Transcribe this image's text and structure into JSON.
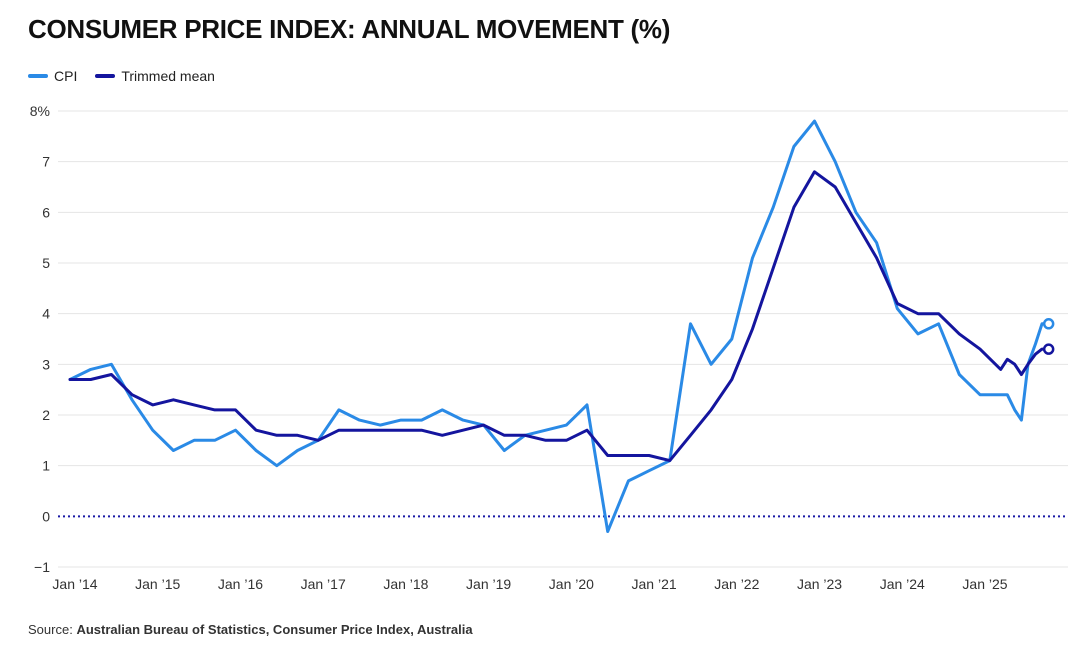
{
  "title": "CONSUMER PRICE INDEX: ANNUAL MOVEMENT (%)",
  "source_label": "Source:",
  "source_text": "Australian Bureau of Statistics, Consumer Price Index, Australia",
  "colors": {
    "cpi": "#2a8ae6",
    "trimmed": "#14159e",
    "zero_line": "#1a1aa6",
    "grid": "#e5e5e5"
  },
  "chart_data": {
    "type": "line",
    "title": "CONSUMER PRICE INDEX: ANNUAL MOVEMENT (%)",
    "xlabel": "",
    "ylabel": "",
    "ylim": [
      -1,
      8
    ],
    "xlim": [
      2014,
      2026
    ],
    "y_ticks": [
      -1,
      0,
      1,
      2,
      3,
      4,
      5,
      6,
      7,
      8
    ],
    "y_tick_labels": [
      "−1",
      "0",
      "1",
      "2",
      "3",
      "4",
      "5",
      "6",
      "7",
      "8%"
    ],
    "x_ticks": [
      2014,
      2015,
      2016,
      2017,
      2018,
      2019,
      2020,
      2021,
      2022,
      2023,
      2024,
      2025
    ],
    "x_tick_labels": [
      "Jan ’14",
      "Jan ’15",
      "Jan ’16",
      "Jan ’17",
      "Jan ’18",
      "Jan ’19",
      "Jan ’20",
      "Jan ’21",
      "Jan ’22",
      "Jan ’23",
      "Jan ’24",
      "Jan ’25"
    ],
    "legend_position": "top-left",
    "grid": true,
    "reference_line": {
      "y": 0,
      "style": "dotted"
    },
    "series": [
      {
        "name": "CPI",
        "x": [
          2014.0,
          2014.25,
          2014.5,
          2014.75,
          2015.0,
          2015.25,
          2015.5,
          2015.75,
          2016.0,
          2016.25,
          2016.5,
          2016.75,
          2017.0,
          2017.25,
          2017.5,
          2017.75,
          2018.0,
          2018.25,
          2018.5,
          2018.75,
          2019.0,
          2019.25,
          2019.5,
          2019.75,
          2020.0,
          2020.25,
          2020.5,
          2020.75,
          2021.0,
          2021.25,
          2021.5,
          2021.75,
          2022.0,
          2022.25,
          2022.5,
          2022.75,
          2023.0,
          2023.25,
          2023.5,
          2023.75,
          2024.0,
          2024.25,
          2024.5,
          2024.75,
          2025.0,
          2025.25,
          2025.33,
          2025.42,
          2025.5,
          2025.58,
          2025.67,
          2025.75,
          2025.83
        ],
        "values": [
          2.7,
          2.9,
          3.0,
          2.3,
          1.7,
          1.3,
          1.5,
          1.5,
          1.7,
          1.3,
          1.0,
          1.3,
          1.5,
          2.1,
          1.9,
          1.8,
          1.9,
          1.9,
          2.1,
          1.9,
          1.8,
          1.3,
          1.6,
          1.7,
          1.8,
          2.2,
          -0.3,
          0.7,
          0.9,
          1.1,
          3.8,
          3.0,
          3.5,
          5.1,
          6.1,
          7.3,
          7.8,
          7.0,
          6.0,
          5.4,
          4.1,
          3.6,
          3.8,
          2.8,
          2.4,
          2.4,
          2.4,
          2.1,
          1.9,
          3.0,
          3.4,
          3.8,
          3.8
        ]
      },
      {
        "name": "Trimmed mean",
        "x": [
          2014.0,
          2014.25,
          2014.5,
          2014.75,
          2015.0,
          2015.25,
          2015.5,
          2015.75,
          2016.0,
          2016.25,
          2016.5,
          2016.75,
          2017.0,
          2017.25,
          2017.5,
          2017.75,
          2018.0,
          2018.25,
          2018.5,
          2018.75,
          2019.0,
          2019.25,
          2019.5,
          2019.75,
          2020.0,
          2020.25,
          2020.5,
          2020.75,
          2021.0,
          2021.25,
          2021.5,
          2021.75,
          2022.0,
          2022.25,
          2022.5,
          2022.75,
          2023.0,
          2023.25,
          2023.5,
          2023.75,
          2024.0,
          2024.25,
          2024.5,
          2024.75,
          2025.0,
          2025.25,
          2025.33,
          2025.42,
          2025.5,
          2025.58,
          2025.67,
          2025.75,
          2025.83
        ],
        "values": [
          2.7,
          2.7,
          2.8,
          2.4,
          2.2,
          2.3,
          2.2,
          2.1,
          2.1,
          1.7,
          1.6,
          1.6,
          1.5,
          1.7,
          1.7,
          1.7,
          1.7,
          1.7,
          1.6,
          1.7,
          1.8,
          1.6,
          1.6,
          1.5,
          1.5,
          1.7,
          1.2,
          1.2,
          1.2,
          1.1,
          1.6,
          2.1,
          2.7,
          3.7,
          4.9,
          6.1,
          6.8,
          6.5,
          5.8,
          5.1,
          4.2,
          4.0,
          4.0,
          3.6,
          3.3,
          2.9,
          3.1,
          3.0,
          2.8,
          3.0,
          3.2,
          3.3,
          3.3
        ]
      }
    ]
  }
}
